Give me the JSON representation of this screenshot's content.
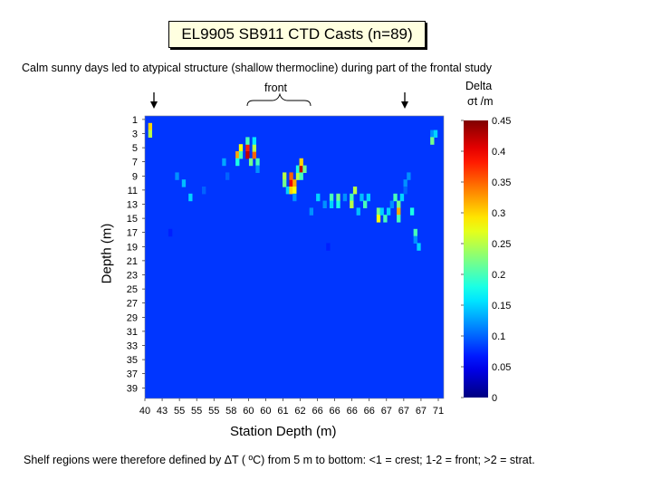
{
  "chart_data": {
    "type": "heatmap",
    "title": "EL9905 SB911 CTD Casts (n=89)",
    "subtitle": "Calm sunny days led to atypical structure (shallow thermocline) during  part of the frontal study",
    "annotation": "front",
    "colorbar_title": "Delta",
    "colorbar_unit": "σt /m",
    "colorbar_ticks": [
      "0",
      "0.05",
      "0.1",
      "0.15",
      "0.2",
      "0.25",
      "0.3",
      "0.35",
      "0.4",
      "0.45"
    ],
    "colorbar_range": [
      0,
      0.45
    ],
    "ylabel": "Depth (m)",
    "xlabel": "Station Depth (m)",
    "y_ticks": [
      "1",
      "3",
      "5",
      "7",
      "9",
      "11",
      "13",
      "15",
      "17",
      "19",
      "21",
      "23",
      "25",
      "27",
      "29",
      "31",
      "33",
      "35",
      "37",
      "39"
    ],
    "x_ticks": [
      "40",
      "43",
      "55",
      "55",
      "55",
      "58",
      "60",
      "60",
      "61",
      "62",
      "66",
      "66",
      "66",
      "66",
      "67",
      "67",
      "67",
      "71"
    ],
    "n_casts": 89,
    "depth_range": [
      1,
      40
    ],
    "arrows": [
      "left",
      "right"
    ],
    "hotspots": [
      {
        "cast": 2,
        "depth": 2,
        "value": 0.3
      },
      {
        "cast": 2,
        "depth": 3,
        "value": 0.25
      },
      {
        "cast": 10,
        "depth": 9,
        "value": 0.12
      },
      {
        "cast": 12,
        "depth": 10,
        "value": 0.14
      },
      {
        "cast": 14,
        "depth": 12,
        "value": 0.15
      },
      {
        "cast": 18,
        "depth": 11,
        "value": 0.1
      },
      {
        "cast": 24,
        "depth": 7,
        "value": 0.13
      },
      {
        "cast": 25,
        "depth": 9,
        "value": 0.1
      },
      {
        "cast": 28,
        "depth": 6,
        "value": 0.32
      },
      {
        "cast": 28,
        "depth": 7,
        "value": 0.18
      },
      {
        "cast": 29,
        "depth": 5,
        "value": 0.28
      },
      {
        "cast": 29,
        "depth": 6,
        "value": 0.2
      },
      {
        "cast": 31,
        "depth": 5,
        "value": 0.38
      },
      {
        "cast": 31,
        "depth": 6,
        "value": 0.42
      },
      {
        "cast": 31,
        "depth": 4,
        "value": 0.2
      },
      {
        "cast": 32,
        "depth": 7,
        "value": 0.22
      },
      {
        "cast": 33,
        "depth": 6,
        "value": 0.35
      },
      {
        "cast": 33,
        "depth": 5,
        "value": 0.25
      },
      {
        "cast": 33,
        "depth": 4,
        "value": 0.16
      },
      {
        "cast": 34,
        "depth": 7,
        "value": 0.2
      },
      {
        "cast": 34,
        "depth": 8,
        "value": 0.12
      },
      {
        "cast": 42,
        "depth": 9,
        "value": 0.25
      },
      {
        "cast": 42,
        "depth": 10,
        "value": 0.22
      },
      {
        "cast": 43,
        "depth": 11,
        "value": 0.15
      },
      {
        "cast": 44,
        "depth": 10,
        "value": 0.4
      },
      {
        "cast": 44,
        "depth": 9,
        "value": 0.35
      },
      {
        "cast": 44,
        "depth": 11,
        "value": 0.3
      },
      {
        "cast": 45,
        "depth": 10,
        "value": 0.32
      },
      {
        "cast": 45,
        "depth": 11,
        "value": 0.28
      },
      {
        "cast": 45,
        "depth": 12,
        "value": 0.12
      },
      {
        "cast": 46,
        "depth": 9,
        "value": 0.25
      },
      {
        "cast": 46,
        "depth": 8,
        "value": 0.18
      },
      {
        "cast": 47,
        "depth": 8,
        "value": 0.42
      },
      {
        "cast": 47,
        "depth": 7,
        "value": 0.3
      },
      {
        "cast": 47,
        "depth": 9,
        "value": 0.2
      },
      {
        "cast": 48,
        "depth": 8,
        "value": 0.22
      },
      {
        "cast": 50,
        "depth": 14,
        "value": 0.12
      },
      {
        "cast": 52,
        "depth": 12,
        "value": 0.15
      },
      {
        "cast": 54,
        "depth": 13,
        "value": 0.12
      },
      {
        "cast": 56,
        "depth": 12,
        "value": 0.2
      },
      {
        "cast": 56,
        "depth": 13,
        "value": 0.15
      },
      {
        "cast": 58,
        "depth": 12,
        "value": 0.22
      },
      {
        "cast": 58,
        "depth": 13,
        "value": 0.18
      },
      {
        "cast": 60,
        "depth": 12,
        "value": 0.12
      },
      {
        "cast": 62,
        "depth": 12,
        "value": 0.2
      },
      {
        "cast": 62,
        "depth": 13,
        "value": 0.25
      },
      {
        "cast": 63,
        "depth": 11,
        "value": 0.25
      },
      {
        "cast": 64,
        "depth": 14,
        "value": 0.14
      },
      {
        "cast": 65,
        "depth": 12,
        "value": 0.14
      },
      {
        "cast": 66,
        "depth": 13,
        "value": 0.2
      },
      {
        "cast": 67,
        "depth": 12,
        "value": 0.15
      },
      {
        "cast": 70,
        "depth": 14,
        "value": 0.22
      },
      {
        "cast": 70,
        "depth": 15,
        "value": 0.28
      },
      {
        "cast": 71,
        "depth": 14,
        "value": 0.15
      },
      {
        "cast": 72,
        "depth": 15,
        "value": 0.2
      },
      {
        "cast": 73,
        "depth": 14,
        "value": 0.15
      },
      {
        "cast": 74,
        "depth": 13,
        "value": 0.12
      },
      {
        "cast": 75,
        "depth": 12,
        "value": 0.2
      },
      {
        "cast": 76,
        "depth": 13,
        "value": 0.22
      },
      {
        "cast": 76,
        "depth": 14,
        "value": 0.32
      },
      {
        "cast": 76,
        "depth": 15,
        "value": 0.2
      },
      {
        "cast": 77,
        "depth": 12,
        "value": 0.15
      },
      {
        "cast": 78,
        "depth": 10,
        "value": 0.12
      },
      {
        "cast": 78,
        "depth": 11,
        "value": 0.1
      },
      {
        "cast": 79,
        "depth": 9,
        "value": 0.12
      },
      {
        "cast": 80,
        "depth": 14,
        "value": 0.18
      },
      {
        "cast": 81,
        "depth": 17,
        "value": 0.2
      },
      {
        "cast": 81,
        "depth": 18,
        "value": 0.12
      },
      {
        "cast": 82,
        "depth": 19,
        "value": 0.15
      },
      {
        "cast": 86,
        "depth": 3,
        "value": 0.12
      },
      {
        "cast": 86,
        "depth": 4,
        "value": 0.22
      },
      {
        "cast": 87,
        "depth": 3,
        "value": 0.15
      },
      {
        "cast": 5,
        "depth": 15,
        "value": 0.08
      },
      {
        "cast": 8,
        "depth": 17,
        "value": 0.07
      },
      {
        "cast": 20,
        "depth": 16,
        "value": 0.08
      },
      {
        "cast": 36,
        "depth": 15,
        "value": 0.08
      },
      {
        "cast": 40,
        "depth": 18,
        "value": 0.08
      },
      {
        "cast": 55,
        "depth": 19,
        "value": 0.07
      },
      {
        "cast": 60,
        "depth": 31,
        "value": 0.08
      },
      {
        "cast": 68,
        "depth": 17,
        "value": 0.08
      },
      {
        "cast": 80,
        "depth": 24,
        "value": 0.08
      }
    ]
  },
  "footnote": "Shelf regions were therefore defined by ΔT ( ºC) from 5 m to bottom:  <1 = crest; 1-2 = front; >2 = strat."
}
